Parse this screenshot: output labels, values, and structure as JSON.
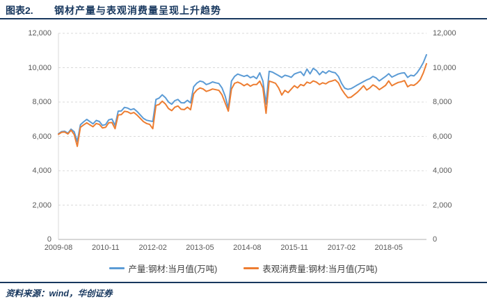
{
  "header": {
    "label": "图表2.",
    "title": "钢材产量与表观消费量呈现上升趋势"
  },
  "footer": {
    "source": "资料来源：wind，华创证券"
  },
  "colors": {
    "navy": "#17375E",
    "production_blue": "#5B9BD5",
    "consumption_orange": "#ED7D31",
    "gridline": "#D9D9D9",
    "axis_line": "#BFBFBF",
    "axis_text": "#595959"
  },
  "chart_data": {
    "type": "line",
    "title": "钢材产量与表观消费量呈现上升趋势",
    "x_start": "2009-08",
    "x_freq": "monthly",
    "x_tick_labels": [
      "2009-08",
      "2010-11",
      "2012-02",
      "2013-05",
      "2014-08",
      "2015-11",
      "2017-02",
      "2018-05"
    ],
    "x_tick_interval_months": 15,
    "y_tick_labels": [
      "12,000",
      "10,000",
      "8,000",
      "6,000",
      "4,000",
      "2,000",
      "0"
    ],
    "ylim": [
      0,
      12000
    ],
    "grid": "horizontal-dashed",
    "dual_axis": true,
    "legend_position": "bottom",
    "series": [
      {
        "id": "production",
        "name": "产量:钢材:当月值(万吨)",
        "color": "#5B9BD5",
        "values": [
          6150,
          6280,
          6300,
          6180,
          6420,
          6270,
          5700,
          6680,
          6850,
          6990,
          6860,
          6730,
          6930,
          6870,
          6640,
          6690,
          6960,
          7010,
          6640,
          7470,
          7480,
          7690,
          7650,
          7550,
          7610,
          7450,
          7250,
          7050,
          6940,
          6900,
          6870,
          8150,
          8230,
          8420,
          8260,
          8000,
          7870,
          8080,
          8150,
          7960,
          7950,
          8100,
          7950,
          8890,
          9100,
          9220,
          9170,
          9020,
          9080,
          9170,
          9120,
          9080,
          8820,
          8350,
          7640,
          9220,
          9490,
          9630,
          9560,
          9490,
          9560,
          9420,
          9490,
          9360,
          9700,
          9220,
          7880,
          9790,
          9740,
          9640,
          9540,
          9430,
          9560,
          9510,
          9440,
          9630,
          9700,
          9760,
          9540,
          9920,
          9640,
          9960,
          9830,
          9590,
          9780,
          9670,
          9820,
          9740,
          9700,
          9490,
          9090,
          8810,
          8740,
          8780,
          8880,
          8990,
          9090,
          9190,
          9290,
          9360,
          9490,
          9400,
          9230,
          9360,
          9490,
          9650,
          9450,
          9540,
          9630,
          9680,
          9700,
          9430,
          9560,
          9520,
          9700,
          9970,
          10300,
          10750
        ]
      },
      {
        "id": "consumption",
        "name": "表观消费量:钢材:当月值(万吨)",
        "color": "#ED7D31",
        "values": [
          6120,
          6240,
          6250,
          6140,
          6360,
          6110,
          5420,
          6530,
          6670,
          6790,
          6670,
          6560,
          6750,
          6700,
          6490,
          6530,
          6790,
          6810,
          6450,
          7250,
          7270,
          7460,
          7430,
          7330,
          7390,
          7240,
          7050,
          6860,
          6750,
          6700,
          6450,
          7800,
          7860,
          8050,
          7890,
          7620,
          7500,
          7700,
          7770,
          7580,
          7560,
          7700,
          7550,
          8480,
          8700,
          8820,
          8760,
          8620,
          8680,
          8760,
          8720,
          8680,
          8420,
          7950,
          7470,
          8750,
          9090,
          9160,
          9080,
          8950,
          9060,
          8920,
          9020,
          9020,
          9220,
          8820,
          7340,
          9220,
          9160,
          9090,
          8820,
          8410,
          8680,
          8550,
          8750,
          8950,
          8820,
          9020,
          8950,
          9160,
          9090,
          9230,
          9160,
          9020,
          9120,
          9060,
          9180,
          9230,
          9290,
          9120,
          8750,
          8480,
          8250,
          8280,
          8420,
          8560,
          8750,
          8950,
          8700,
          8820,
          9000,
          8890,
          8720,
          8840,
          8970,
          9230,
          8950,
          9050,
          9140,
          9180,
          9250,
          8890,
          9000,
          8970,
          9100,
          9300,
          9700,
          10230
        ]
      }
    ]
  }
}
